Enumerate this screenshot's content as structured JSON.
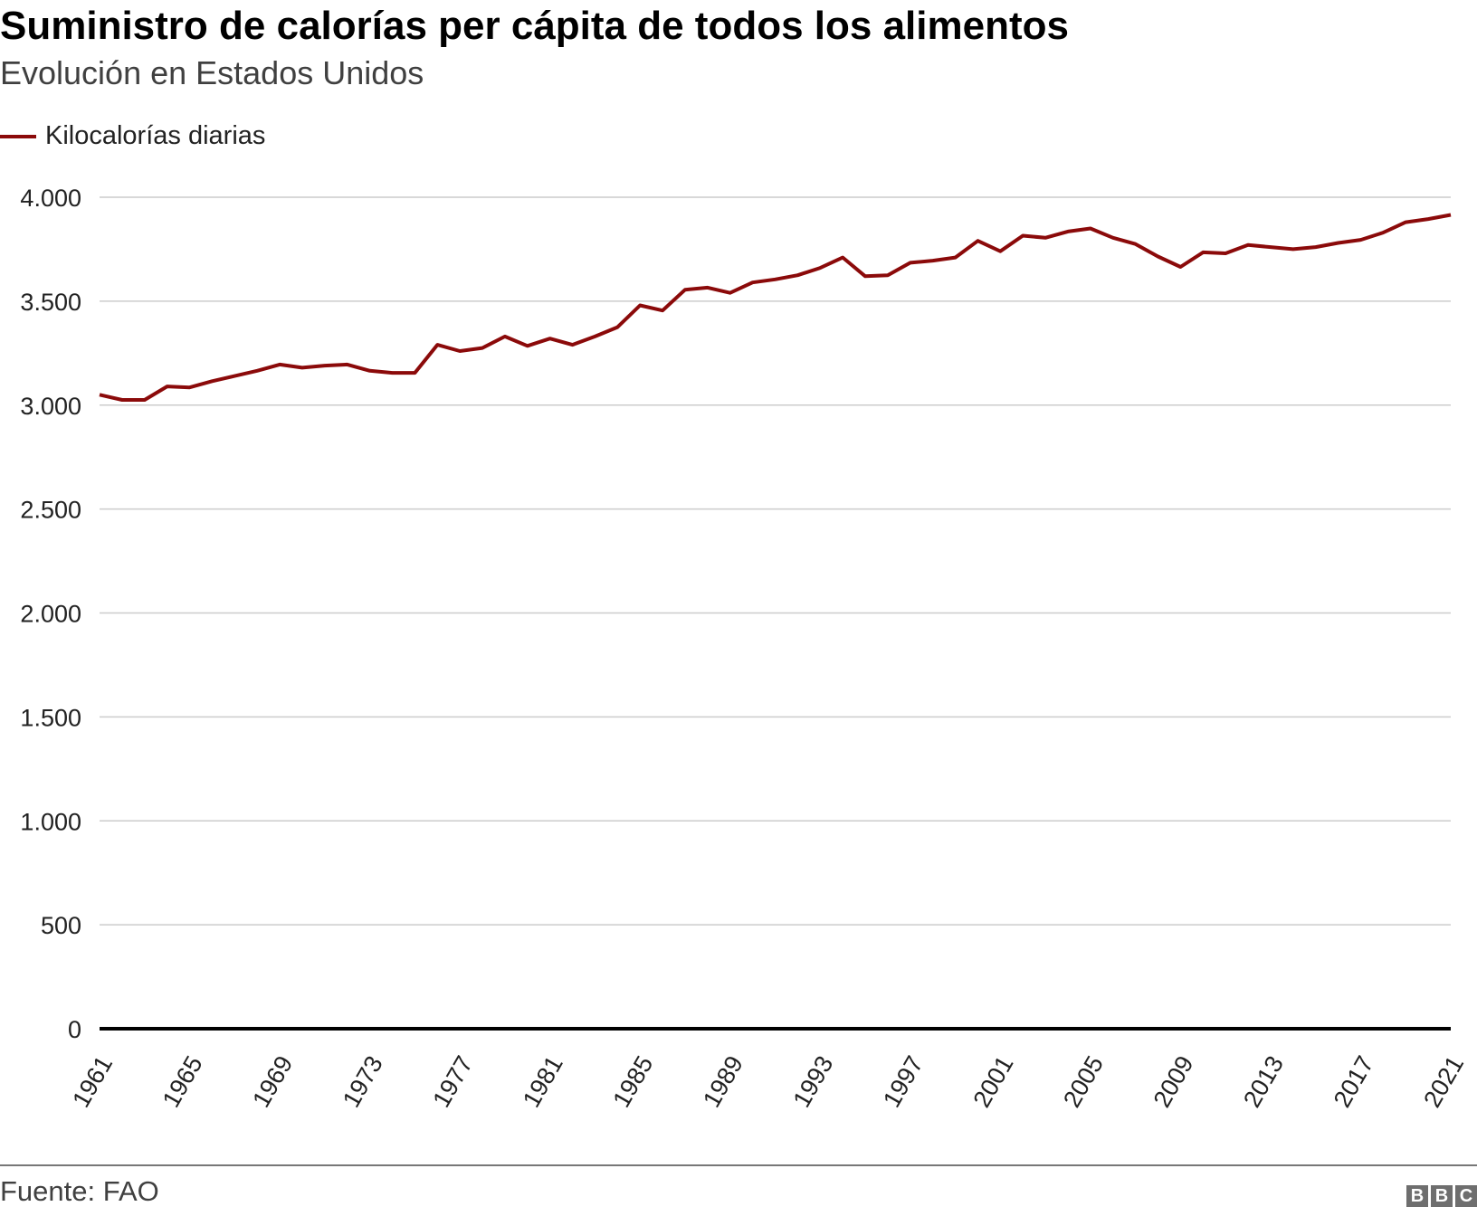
{
  "header": {
    "title": "Suministro de calorías per cápita de todos los alimentos",
    "subtitle": "Evolución en Estados Unidos"
  },
  "legend": {
    "label": "Kilocalorías diarias"
  },
  "footer": {
    "source": "Fuente: FAO",
    "logo": [
      "B",
      "B",
      "C"
    ]
  },
  "colors": {
    "line": "#8b0a0a",
    "grid": "#cccccc",
    "axis": "#000000"
  },
  "chart_data": {
    "type": "line",
    "title": "Suministro de calorías per cápita de todos los alimentos",
    "subtitle": "Evolución en Estados Unidos",
    "xlabel": "",
    "ylabel": "",
    "ylim": [
      0,
      4000
    ],
    "yticks": [
      0,
      500,
      1000,
      1500,
      2000,
      2500,
      3000,
      3500,
      4000
    ],
    "ytick_labels": [
      "0",
      "500",
      "1.000",
      "1.500",
      "2.000",
      "2.500",
      "3.000",
      "3.500",
      "4.000"
    ],
    "xticks": [
      1961,
      1965,
      1969,
      1973,
      1977,
      1981,
      1985,
      1989,
      1993,
      1997,
      2001,
      2005,
      2009,
      2013,
      2017,
      2021
    ],
    "grid": true,
    "legend_position": "top-left",
    "x": [
      1961,
      1962,
      1963,
      1964,
      1965,
      1966,
      1967,
      1968,
      1969,
      1970,
      1971,
      1972,
      1973,
      1974,
      1975,
      1976,
      1977,
      1978,
      1979,
      1980,
      1981,
      1982,
      1983,
      1984,
      1985,
      1986,
      1987,
      1988,
      1989,
      1990,
      1991,
      1992,
      1993,
      1994,
      1995,
      1996,
      1997,
      1998,
      1999,
      2000,
      2001,
      2002,
      2003,
      2004,
      2005,
      2006,
      2007,
      2008,
      2009,
      2010,
      2011,
      2012,
      2013,
      2014,
      2015,
      2016,
      2017,
      2018,
      2019,
      2020,
      2021
    ],
    "series": [
      {
        "name": "Kilocalorías diarias",
        "values": [
          3050,
          3025,
          3025,
          3090,
          3085,
          3115,
          3140,
          3165,
          3195,
          3180,
          3190,
          3195,
          3165,
          3155,
          3155,
          3290,
          3260,
          3275,
          3330,
          3285,
          3320,
          3290,
          3330,
          3375,
          3480,
          3455,
          3555,
          3565,
          3540,
          3590,
          3605,
          3625,
          3660,
          3710,
          3620,
          3625,
          3685,
          3695,
          3710,
          3790,
          3740,
          3815,
          3805,
          3835,
          3850,
          3805,
          3775,
          3715,
          3665,
          3735,
          3730,
          3770,
          3760,
          3750,
          3760,
          3780,
          3795,
          3830,
          3880,
          3895,
          3915
        ]
      }
    ]
  }
}
